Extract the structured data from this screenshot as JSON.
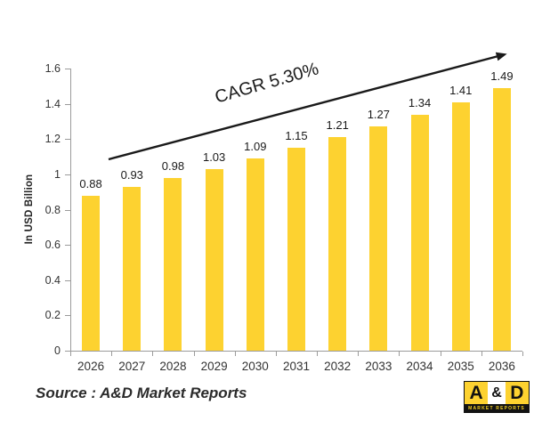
{
  "chart_data": {
    "type": "bar",
    "title": "",
    "categories": [
      "2026",
      "2027",
      "2028",
      "2029",
      "2030",
      "2031",
      "2032",
      "2033",
      "2034",
      "2035",
      "2036"
    ],
    "values": [
      0.88,
      0.93,
      0.98,
      1.03,
      1.09,
      1.15,
      1.21,
      1.27,
      1.34,
      1.41,
      1.49
    ],
    "xlabel": "",
    "ylabel": "In USD Billion",
    "ylim": [
      0,
      1.6
    ],
    "ytick_step": 0.2,
    "ytick_labels": [
      "0",
      "0.2",
      "0.4",
      "0.6",
      "0.8",
      "1",
      "1.2",
      "1.4",
      "1.6"
    ],
    "annotation": "CAGR 5.30%",
    "bar_color": "#FDD230",
    "grid": false,
    "legend": "none"
  },
  "source_note": "Source : A&D Market Reports",
  "logo": {
    "letter_a": "A",
    "ampersand": "&",
    "letter_d": "D",
    "subtitle": "MARKET REPORTS",
    "yellow": "#FDD230",
    "black": "#121212"
  }
}
